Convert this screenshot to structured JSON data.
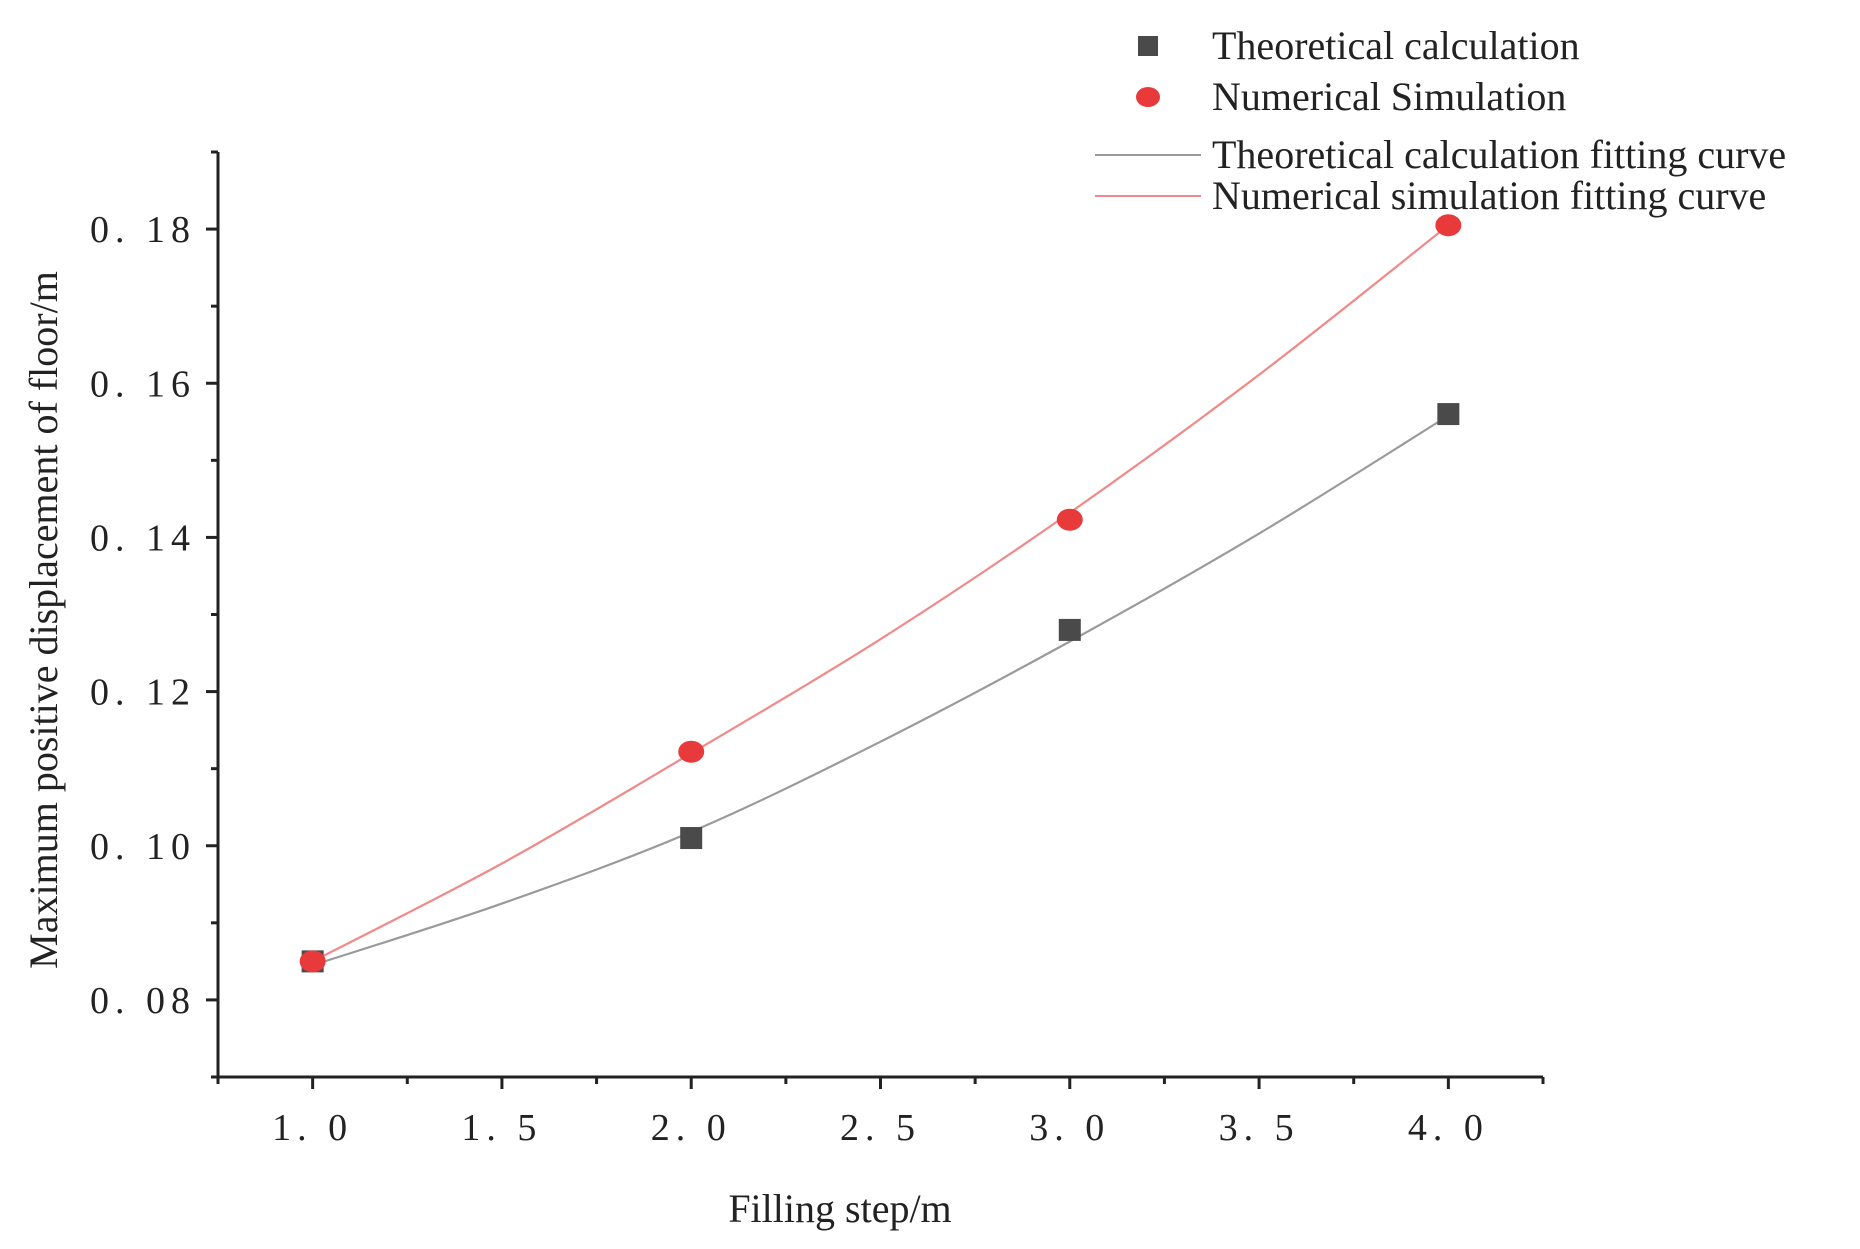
{
  "chart_data": {
    "type": "scatter",
    "title": "",
    "xlabel": "Filling step/m",
    "ylabel": "Maximum positive displacement of floor/m",
    "xlim": [
      0.75,
      4.25
    ],
    "ylim": [
      0.07,
      0.19
    ],
    "xticks": [
      1.0,
      1.5,
      2.0,
      2.5,
      3.0,
      3.5,
      4.0
    ],
    "xtick_labels": [
      "1. 0",
      "1. 5",
      "2. 0",
      "2. 5",
      "3. 0",
      "3. 5",
      "4. 0"
    ],
    "yticks": [
      0.08,
      0.1,
      0.12,
      0.14,
      0.16,
      0.18
    ],
    "ytick_labels": [
      "0. 08",
      "0. 10",
      "0. 12",
      "0. 14",
      "0. 16",
      "0. 18"
    ],
    "grid": false,
    "legend_position": "top-right",
    "series": [
      {
        "name": "Theoretical calculation",
        "kind": "marker",
        "marker": "square",
        "color": "#4a4a4a",
        "x": [
          1.0,
          2.0,
          3.0,
          4.0
        ],
        "y": [
          0.085,
          0.101,
          0.128,
          0.156
        ]
      },
      {
        "name": "Numerical Simulation",
        "kind": "marker",
        "marker": "circle",
        "color": "#e83a3a",
        "x": [
          1.0,
          2.0,
          3.0,
          4.0
        ],
        "y": [
          0.085,
          0.1122,
          0.1423,
          0.1805
        ]
      },
      {
        "name": "Theoretical calculation fitting curve",
        "kind": "line",
        "color": "#9a9a9a",
        "x": [
          1.0,
          1.5,
          2.0,
          2.5,
          3.0,
          3.5,
          4.0
        ],
        "y": [
          0.0845,
          0.0925,
          0.1018,
          0.1135,
          0.1265,
          0.1405,
          0.1558
        ]
      },
      {
        "name": "Numerical simulation fitting curve",
        "kind": "line",
        "color": "#f08a8a",
        "x": [
          1.0,
          1.5,
          2.0,
          2.5,
          3.0,
          3.5,
          4.0
        ],
        "y": [
          0.085,
          0.0977,
          0.112,
          0.1268,
          0.1432,
          0.1611,
          0.1805
        ]
      }
    ]
  }
}
